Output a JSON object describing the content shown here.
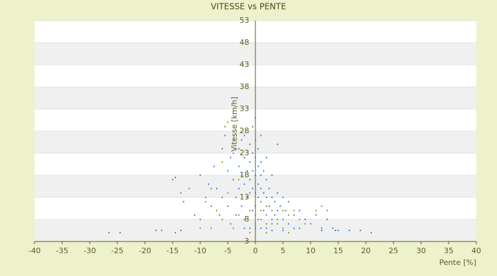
{
  "chart_data": {
    "type": "scatter",
    "title": "VITESSE vs PENTE",
    "xlabel": "Pente [%]",
    "ylabel": "Vitesse [km/h]",
    "xlim": [
      -40,
      40
    ],
    "xticks": [
      -40,
      -35,
      -30,
      -25,
      -20,
      -15,
      -10,
      -5,
      0,
      5,
      10,
      15,
      20,
      25,
      30,
      35,
      40
    ],
    "ylim": [
      3,
      53
    ],
    "yticks": [
      3,
      8,
      13,
      18,
      23,
      28,
      33,
      38,
      43,
      48,
      53
    ],
    "grid": true,
    "series": [
      {
        "color": "#3a8ee0",
        "x": [
          -26.5,
          -24.5,
          -18,
          -17,
          -14.5,
          -13.5,
          -15,
          -14.5,
          -13.5,
          -13,
          -11,
          -10,
          -10,
          -9,
          -8.5,
          -8,
          -7.5,
          -7,
          -6.5,
          -6,
          -6,
          -5.5,
          -5,
          -5,
          -4.5,
          -4.5,
          -4,
          -4,
          -3.5,
          -3.5,
          -3,
          -3,
          -3,
          -2.5,
          -2.5,
          -2,
          -2,
          -2,
          -2,
          -1.5,
          -1.5,
          -1,
          -1,
          -1,
          -1,
          -1,
          -0.5,
          -0.5,
          -0.5,
          -0.5,
          0,
          0,
          0,
          0,
          0,
          0,
          0,
          0.5,
          0.5,
          0.5,
          0.5,
          0.5,
          1,
          1,
          1,
          1,
          1,
          1.5,
          1.5,
          1.5,
          2,
          2,
          2,
          2,
          2,
          2.5,
          2.5,
          3,
          3,
          3,
          3,
          3.5,
          3.5,
          4,
          4,
          4,
          4.5,
          5,
          5,
          5,
          5.5,
          6,
          6,
          7,
          7,
          8,
          8,
          9,
          10,
          11,
          12,
          12,
          13,
          14,
          14.5,
          15,
          17,
          19,
          21,
          4,
          -0.5,
          1,
          -2.5
        ],
        "values": [
          5,
          5,
          5.5,
          5.5,
          5,
          5.5,
          17,
          17.5,
          14,
          12,
          9,
          18,
          8,
          13,
          16,
          11,
          20,
          15,
          9,
          24,
          13,
          27,
          19,
          11,
          22,
          7,
          26,
          17,
          13,
          9,
          24,
          20,
          15,
          18,
          11,
          27,
          22,
          16,
          6,
          19,
          13,
          25,
          21,
          17,
          14,
          6,
          23,
          19,
          15,
          10,
          31,
          26,
          22,
          18,
          14,
          11,
          6,
          24,
          20,
          16,
          13,
          8,
          21,
          18,
          15,
          12,
          6,
          19,
          14,
          10,
          22,
          17,
          13,
          9,
          6,
          15,
          11,
          18,
          13,
          8,
          5.5,
          12,
          9,
          14,
          10,
          7,
          11,
          13,
          8,
          5.5,
          10,
          12,
          7,
          9,
          6,
          10,
          6,
          8,
          7,
          9,
          6,
          5.5,
          8,
          6,
          5.5,
          5.5,
          5.5,
          5.5,
          5,
          25,
          29,
          27,
          26
        ]
      },
      {
        "color": "#a0a020",
        "x": [
          -5.5,
          -5,
          -6,
          -4,
          -8,
          -9,
          -7,
          -6,
          -5,
          -4,
          -3,
          -3,
          -2,
          -1,
          -1,
          0,
          0,
          1,
          1,
          2,
          2,
          3,
          3,
          4,
          5,
          5,
          6,
          7,
          8,
          9,
          11,
          12,
          13,
          -12,
          -10,
          -8,
          2,
          6
        ],
        "values": [
          29,
          30,
          21,
          23,
          15,
          12,
          10,
          8,
          14,
          6,
          9,
          17,
          8,
          10,
          5,
          7,
          9,
          8,
          10,
          7,
          11,
          10,
          7,
          8,
          10,
          6,
          9,
          10,
          8,
          7,
          10,
          11,
          10,
          15,
          6,
          6,
          5,
          5
        ]
      }
    ]
  }
}
